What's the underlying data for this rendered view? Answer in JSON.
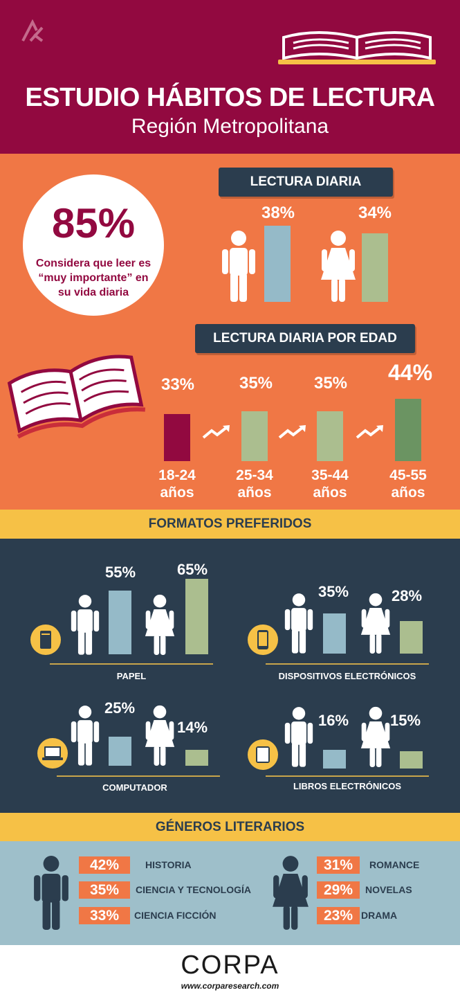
{
  "header": {
    "title": "ESTUDIO HÁBITOS DE LECTURA",
    "subtitle": "Región Metropolitana"
  },
  "highlight": {
    "value": "85%",
    "text_line1": "Considera que leer es",
    "text_line2": "“muy importante” en",
    "text_line3": "su vida diaria"
  },
  "daily": {
    "title": "LECTURA DIARIA",
    "male_label": "38%",
    "female_label": "34%",
    "male_value": 38,
    "female_value": 34
  },
  "age": {
    "title": "LECTURA DIARIA POR EDAD",
    "groups": [
      {
        "range": "18-24",
        "unit": "años",
        "label": "33%",
        "value": 33
      },
      {
        "range": "25-34",
        "unit": "años",
        "label": "35%",
        "value": 35
      },
      {
        "range": "35-44",
        "unit": "años",
        "label": "35%",
        "value": 35
      },
      {
        "range": "45-55",
        "unit": "años",
        "label": "44%",
        "value": 44
      }
    ]
  },
  "formats": {
    "title": "FORMATOS PREFERIDOS",
    "paper": {
      "name": "PAPEL",
      "male": "55%",
      "female": "65%",
      "male_value": 55,
      "female_value": 65
    },
    "devices": {
      "name": "DISPOSITIVOS ELECTRÓNICOS",
      "male": "35%",
      "female": "28%",
      "male_value": 35,
      "female_value": 28
    },
    "computer": {
      "name": "COMPUTADOR",
      "male": "25%",
      "female": "14%",
      "male_value": 25,
      "female_value": 14
    },
    "ebooks": {
      "name": "LIBROS ELECTRÓNICOS",
      "male": "16%",
      "female": "15%",
      "male_value": 16,
      "female_value": 15
    }
  },
  "genres": {
    "title": "GÉNEROS LITERARIOS",
    "male": [
      {
        "pct": "42%",
        "name": "HISTORIA"
      },
      {
        "pct": "35%",
        "name": "CIENCIA Y TECNOLOGÍA"
      },
      {
        "pct": "33%",
        "name": "CIENCIA FICCIÓN"
      }
    ],
    "female": [
      {
        "pct": "31%",
        "name": "ROMANCE"
      },
      {
        "pct": "29%",
        "name": "NOVELAS"
      },
      {
        "pct": "23%",
        "name": "DRAMA"
      }
    ]
  },
  "footer": {
    "brand": "CORPA",
    "url": "www.corparesearch.com"
  },
  "colors": {
    "header": "#920940",
    "orange": "#f07745",
    "navy": "#2b3d4e",
    "yellow": "#f6c146",
    "light_blue": "#9ebfca",
    "bar_blue": "#95bac8",
    "bar_green": "#abbe8f",
    "bar_dark_green": "#6b9462",
    "bar_crimson": "#920940"
  }
}
